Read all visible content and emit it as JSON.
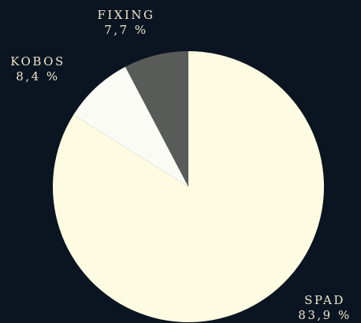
{
  "chart_data": {
    "type": "pie",
    "title": "",
    "start_angle_deg": 0,
    "direction": "clockwise",
    "slices": [
      {
        "name": "SPAD",
        "value": 83.9,
        "value_label": "83,9 %",
        "color": "#fdfbe1"
      },
      {
        "name": "KOBOS",
        "value": 8.4,
        "value_label": "8,4 %",
        "color": "#fbfbf5"
      },
      {
        "name": "FIXING",
        "value": 7.7,
        "value_label": "7,7 %",
        "color": "#595b59"
      }
    ]
  },
  "colors": {
    "background": "#0b1521",
    "label_text": "#efe6cf"
  }
}
